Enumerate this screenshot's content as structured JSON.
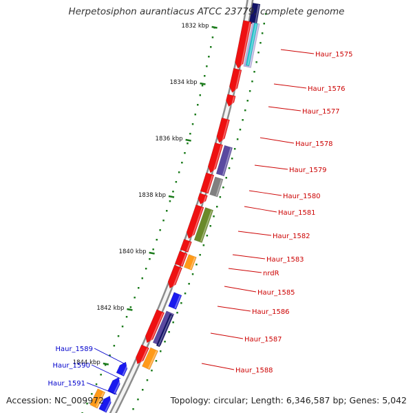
{
  "title": "Herpetosiphon aurantiacus ATCC 23779, complete genome",
  "accession_text": "Accession: NC_009972",
  "summary_text": "Topology: circular; Length: 6,346,587 bp; Genes: 5,042",
  "colors": {
    "backbone": "#8c8c8c",
    "tick": "#1a7a1a",
    "forward_label": "#cc0000",
    "reverse_label": "#0000cc",
    "red": "#ee1111",
    "blue": "#1a1aee",
    "purple": "#5a4aa0",
    "cyan": "#22c4cc",
    "gray": "#808080",
    "olive": "#6a8a2a",
    "orange": "#ff9a1a",
    "navy": "#121266",
    "lavender": "#b8b0e0"
  },
  "ticks": [
    "1832 kbp",
    "1834 kbp",
    "1836 kbp",
    "1838 kbp",
    "1840 kbp",
    "1842 kbp",
    "1844 kbp"
  ],
  "forward_labels": [
    "Haur_1575",
    "Haur_1576",
    "Haur_1577",
    "Haur_1578",
    "Haur_1579",
    "Haur_1580",
    "Haur_1581",
    "Haur_1582",
    "Haur_1583",
    "nrdR",
    "Haur_1585",
    "Haur_1586",
    "Haur_1587",
    "Haur_1588"
  ],
  "reverse_labels": [
    "Haur_1589",
    "Haur_1590",
    "Haur_1591"
  ]
}
